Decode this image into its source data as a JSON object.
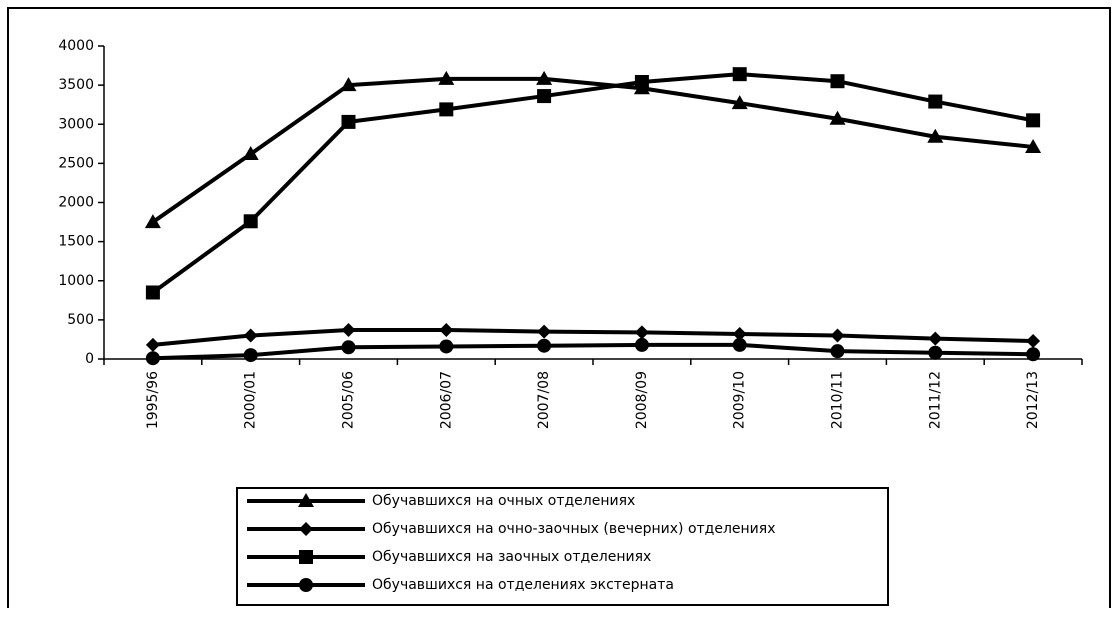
{
  "chart_data": {
    "type": "line",
    "categories": [
      "1995/96",
      "2000/01",
      "2005/06",
      "2006/07",
      "2007/08",
      "2008/09",
      "2009/10",
      "2010/11",
      "2011/12",
      "2012/13"
    ],
    "series": [
      {
        "name": "Обучавшихся на очных отделениях",
        "color": "#000000",
        "marker": "triangle",
        "values": [
          1750,
          2620,
          3500,
          3580,
          3580,
          3460,
          3270,
          3070,
          2840,
          2710
        ]
      },
      {
        "name": "Обучавшихся на очно-заочных (вечерних) отделениях",
        "color": "#000000",
        "marker": "diamond",
        "values": [
          180,
          300,
          370,
          370,
          350,
          340,
          320,
          300,
          260,
          230
        ]
      },
      {
        "name": "Обучавшихся на заочных отделениях",
        "color": "#000000",
        "marker": "square",
        "values": [
          850,
          1760,
          3030,
          3190,
          3360,
          3540,
          3640,
          3550,
          3290,
          3050
        ]
      },
      {
        "name": "Обучавшихся на отделениях экстерната",
        "color": "#000000",
        "marker": "circle",
        "values": [
          10,
          50,
          150,
          160,
          170,
          180,
          180,
          100,
          80,
          60
        ]
      }
    ],
    "ylim": [
      0,
      4000
    ],
    "yticks": [
      0,
      500,
      1000,
      1500,
      2000,
      2500,
      3000,
      3500,
      4000
    ],
    "grid": false,
    "legend": "bottom"
  }
}
